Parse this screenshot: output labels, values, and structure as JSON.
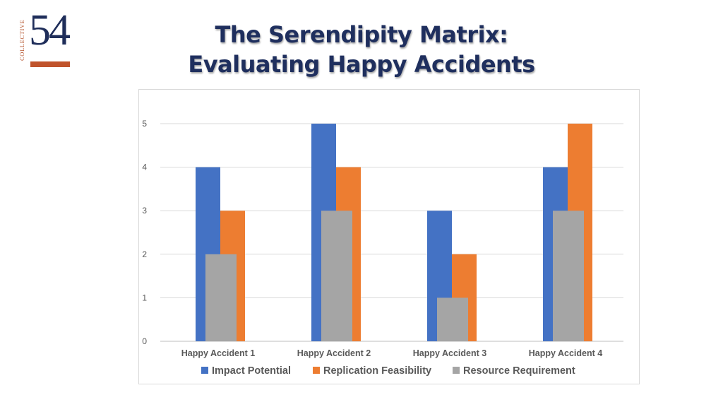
{
  "logo": {
    "side_text": "COLLECTIVE",
    "number": "54"
  },
  "title": {
    "line1": "The Serendipity Matrix:",
    "line2": "Evaluating Happy Accidents"
  },
  "colors": {
    "title": "#1f2f5e",
    "impact": "#4472c4",
    "replication": "#ed7d31",
    "resource": "#a5a5a5",
    "logo_navy": "#1f2e5a",
    "logo_orange": "#c0532b"
  },
  "chart_data": {
    "type": "bar",
    "title": "",
    "xlabel": "",
    "ylabel": "",
    "categories": [
      "Happy Accident 1",
      "Happy Accident 2",
      "Happy Accident 3",
      "Happy Accident 4"
    ],
    "series": [
      {
        "name": "Impact Potential",
        "values": [
          4,
          5,
          3,
          4
        ],
        "color": "#4472c4"
      },
      {
        "name": "Replication Feasibility",
        "values": [
          3,
          4,
          2,
          5
        ],
        "color": "#ed7d31"
      },
      {
        "name": "Resource Requirement",
        "values": [
          2,
          3,
          1,
          3
        ],
        "color": "#a5a5a5"
      }
    ],
    "ylim": [
      0,
      5
    ],
    "yticks": [
      0,
      1,
      2,
      3,
      4,
      5
    ],
    "grid": true,
    "legend": "bottom"
  }
}
